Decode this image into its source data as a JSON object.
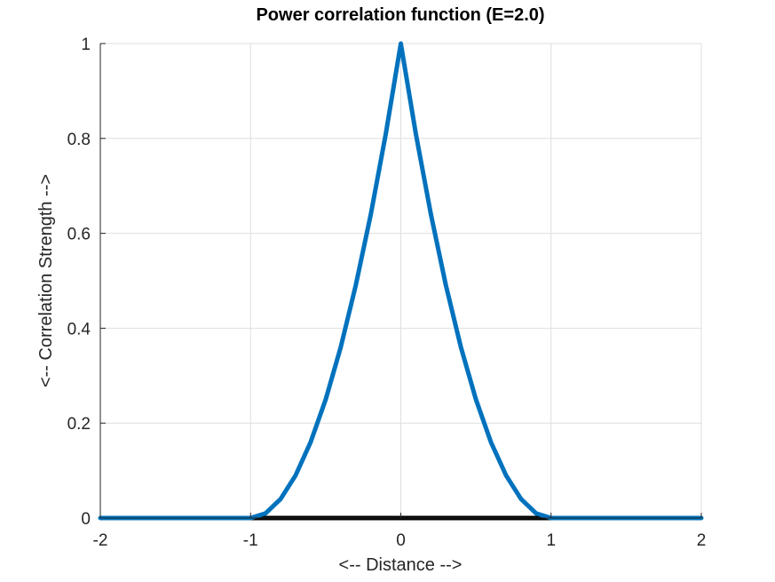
{
  "chart_data": {
    "type": "line",
    "title": "Power correlation function (E=2.0)",
    "xlabel": "<-- Distance -->",
    "ylabel": "<-- Correlation Strength -->",
    "xlim": [
      -2,
      2
    ],
    "ylim": [
      0,
      1
    ],
    "xticks": [
      "-2",
      "-1",
      "0",
      "1",
      "2"
    ],
    "yticks": [
      "0",
      "0.2",
      "0.4",
      "0.6",
      "0.8",
      "1"
    ],
    "grid": true,
    "series": [
      {
        "color": "#0072BD",
        "x": [
          -2,
          -1,
          -0.9,
          -0.8,
          -0.7,
          -0.6,
          -0.5,
          -0.4,
          -0.3,
          -0.2,
          -0.1,
          0,
          0.1,
          0.2,
          0.3,
          0.4,
          0.5,
          0.6,
          0.7,
          0.8,
          0.9,
          1,
          2
        ],
        "y": [
          0,
          0,
          0.01,
          0.04,
          0.09,
          0.16,
          0.25,
          0.36,
          0.49,
          0.64,
          0.81,
          1,
          0.81,
          0.64,
          0.49,
          0.36,
          0.25,
          0.16,
          0.09,
          0.04,
          0.01,
          0,
          0
        ]
      }
    ],
    "baseline": {
      "y": 0,
      "color": "#000000"
    },
    "colors": {
      "grid": "#dfdfdf",
      "axis": "#262626"
    }
  }
}
